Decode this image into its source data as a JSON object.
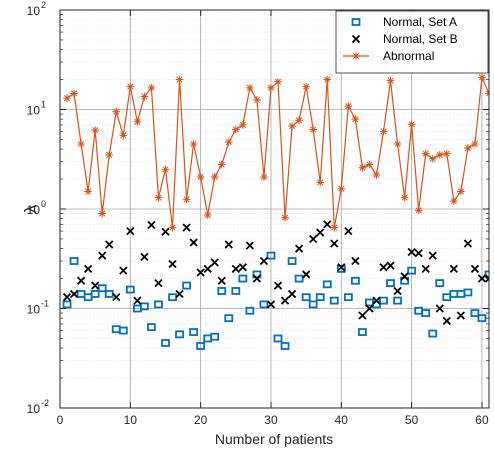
{
  "chart_data": {
    "type": "scatter",
    "xlabel": "Number of patients",
    "ylabel": "λ",
    "x_scale": "linear",
    "y_scale": "log",
    "xlim": [
      0,
      61
    ],
    "ylim": [
      0.01,
      100
    ],
    "x_ticks": [
      0,
      10,
      20,
      30,
      40,
      50,
      60
    ],
    "x_tick_labels": [
      "0",
      "10",
      "20",
      "30",
      "40",
      "50",
      "60"
    ],
    "y_ticks": [
      0.01,
      0.1,
      1,
      10,
      100
    ],
    "y_tick_labels": [
      {
        "base": "10",
        "exp": "-2"
      },
      {
        "base": "10",
        "exp": "-1"
      },
      {
        "base": "10",
        "exp": "0"
      },
      {
        "base": "10",
        "exp": "1"
      },
      {
        "base": "10",
        "exp": "2"
      }
    ],
    "grid": true,
    "legend_position": "top-right",
    "series": [
      {
        "name": "Normal, Set A",
        "marker": "square",
        "line": false,
        "color": "#0072BD",
        "x": [
          1,
          2,
          3,
          4,
          5,
          6,
          7,
          8,
          9,
          10,
          11,
          12,
          13,
          14,
          15,
          16,
          17,
          18,
          19,
          20,
          21,
          22,
          23,
          24,
          25,
          26,
          27,
          28,
          29,
          30,
          31,
          32,
          33,
          34,
          35,
          36,
          37,
          38,
          39,
          40,
          41,
          42,
          43,
          44,
          45,
          46,
          47,
          48,
          49,
          50,
          51,
          52,
          53,
          54,
          55,
          56,
          57,
          58,
          59,
          60,
          61
        ],
        "y": [
          0.11,
          0.3,
          0.14,
          0.13,
          0.14,
          0.16,
          0.14,
          0.062,
          0.06,
          0.155,
          0.1,
          0.105,
          0.065,
          0.11,
          0.045,
          0.13,
          0.055,
          0.17,
          0.058,
          0.042,
          0.05,
          0.052,
          0.15,
          0.08,
          0.15,
          0.2,
          0.095,
          0.22,
          0.11,
          0.34,
          0.05,
          0.042,
          0.3,
          0.2,
          0.13,
          0.11,
          0.13,
          0.175,
          0.12,
          0.25,
          0.13,
          0.19,
          0.058,
          0.115,
          0.11,
          0.12,
          0.18,
          0.12,
          0.19,
          0.24,
          0.095,
          0.09,
          0.056,
          0.18,
          0.13,
          0.14,
          0.14,
          0.145,
          0.09,
          0.08,
          0.22
        ]
      },
      {
        "name": "Normal, Set B",
        "marker": "x",
        "line": false,
        "color": "#000000",
        "x": [
          1,
          2,
          3,
          4,
          5,
          6,
          7,
          8,
          9,
          10,
          11,
          12,
          13,
          14,
          15,
          16,
          17,
          18,
          19,
          20,
          21,
          22,
          23,
          24,
          25,
          26,
          27,
          28,
          29,
          30,
          31,
          32,
          33,
          34,
          35,
          36,
          37,
          38,
          39,
          40,
          41,
          42,
          43,
          44,
          45,
          46,
          47,
          48,
          49,
          50,
          51,
          52,
          53,
          54,
          55,
          56,
          57,
          58,
          59,
          60,
          61
        ],
        "y": [
          0.13,
          0.14,
          0.19,
          0.25,
          0.17,
          0.34,
          0.44,
          0.13,
          0.24,
          0.6,
          0.12,
          0.33,
          0.69,
          0.18,
          0.59,
          0.28,
          0.14,
          0.65,
          0.46,
          0.23,
          0.25,
          0.29,
          0.19,
          0.44,
          0.25,
          0.26,
          0.43,
          0.2,
          0.3,
          0.11,
          0.17,
          0.12,
          0.14,
          0.4,
          0.22,
          0.5,
          0.58,
          0.7,
          0.45,
          0.26,
          0.6,
          0.3,
          0.085,
          0.1,
          0.12,
          0.26,
          0.27,
          0.15,
          0.21,
          0.37,
          0.36,
          0.25,
          0.34,
          0.1,
          0.075,
          0.25,
          0.085,
          0.45,
          0.25,
          0.2,
          0.2
        ]
      },
      {
        "name": "Abnormal",
        "marker": "asterisk",
        "line": true,
        "color": "#D95319",
        "x": [
          1,
          2,
          3,
          4,
          5,
          6,
          7,
          8,
          9,
          10,
          11,
          12,
          13,
          14,
          15,
          16,
          17,
          18,
          19,
          20,
          21,
          22,
          23,
          24,
          25,
          26,
          27,
          28,
          29,
          30,
          31,
          32,
          33,
          34,
          35,
          36,
          37,
          38,
          39,
          40,
          41,
          42,
          43,
          44,
          45,
          46,
          47,
          48,
          49,
          50,
          51,
          52,
          53,
          54,
          55,
          56,
          57,
          58,
          59,
          60,
          61
        ],
        "y": [
          13,
          14.5,
          4.5,
          1.5,
          6.2,
          0.9,
          3.5,
          9.5,
          5.5,
          17,
          7.5,
          13.5,
          16.5,
          1.3,
          2.5,
          0.65,
          20,
          1.25,
          4.5,
          2.1,
          0.87,
          2.1,
          2.8,
          4.7,
          6.3,
          7,
          16.5,
          12.5,
          2.1,
          16.5,
          19,
          0.82,
          6.8,
          7.8,
          17,
          6.3,
          1.85,
          20,
          0.65,
          1.6,
          10.8,
          8,
          2.6,
          2.8,
          2.2,
          6,
          19.5,
          4.5,
          1.3,
          7.1,
          0.97,
          3.6,
          3.2,
          3.5,
          3.6,
          1.2,
          1.5,
          4.1,
          4.5,
          21,
          14.5
        ]
      }
    ]
  }
}
